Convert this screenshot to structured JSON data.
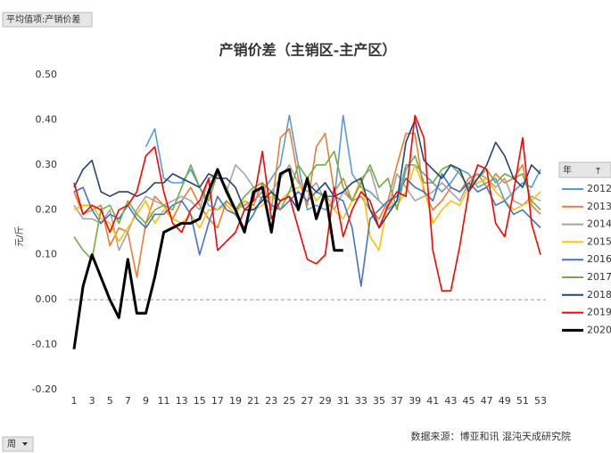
{
  "pivot_fields": {
    "value_field": "平均值项:产销价差",
    "row_field": "周",
    "legend_field": "年"
  },
  "chart_data": {
    "type": "line",
    "title": "产销价差（主销区-主产区）",
    "y_label": "元/斤",
    "source": "数据来源：博亚和讯 混沌天成研究院",
    "x": [
      1,
      2,
      3,
      4,
      5,
      6,
      7,
      8,
      9,
      10,
      11,
      12,
      13,
      14,
      15,
      16,
      17,
      18,
      19,
      20,
      21,
      22,
      23,
      24,
      25,
      26,
      27,
      28,
      29,
      30,
      31,
      32,
      33,
      34,
      35,
      36,
      37,
      38,
      39,
      40,
      41,
      42,
      43,
      44,
      45,
      46,
      47,
      48,
      49,
      50,
      51,
      52,
      53
    ],
    "xlim": [
      1,
      53
    ],
    "xticks": [
      1,
      3,
      5,
      7,
      9,
      11,
      13,
      15,
      17,
      19,
      21,
      23,
      25,
      27,
      29,
      31,
      33,
      35,
      37,
      39,
      41,
      43,
      45,
      47,
      49,
      51,
      53
    ],
    "ylim": [
      -0.2,
      0.5
    ],
    "yticks": [
      {
        "value": 0.5,
        "label": "0.50"
      },
      {
        "value": 0.4,
        "label": "0.40"
      },
      {
        "value": 0.3,
        "label": "0.30"
      },
      {
        "value": 0.2,
        "label": "0.20"
      },
      {
        "value": 0.1,
        "label": "0.10"
      },
      {
        "value": 0,
        "label": "0.00"
      },
      {
        "value": -0.1,
        "label": "-0.10"
      },
      {
        "value": -0.2,
        "label": "-0.20"
      }
    ],
    "grid": false,
    "legend_position": "right",
    "series": [
      {
        "name": "2012",
        "color": "#5b9bd5",
        "values": [
          null,
          null,
          null,
          null,
          null,
          null,
          null,
          null,
          0.34,
          0.38,
          0.27,
          0.26,
          0.26,
          0.29,
          0.25,
          0.21,
          0.2,
          0.22,
          0.2,
          0.21,
          0.22,
          0.24,
          0.27,
          0.3,
          0.41,
          0.3,
          0.2,
          0.21,
          0.2,
          0.22,
          0.41,
          0.28,
          0.25,
          0.24,
          0.22,
          0.2,
          0.22,
          0.3,
          0.3,
          0.28,
          0.26,
          0.24,
          0.26,
          0.29,
          0.28,
          0.25,
          0.26,
          0.27,
          0.22,
          0.24,
          0.26,
          0.25,
          0.29
        ]
      },
      {
        "name": "2013",
        "color": "#ed7d31",
        "values": [
          0.24,
          0.19,
          0.2,
          0.21,
          0.12,
          0.16,
          0.15,
          0.05,
          0.17,
          0.23,
          0.21,
          0.18,
          0.22,
          0.25,
          0.21,
          0.18,
          0.16,
          0.22,
          0.2,
          0.22,
          0.21,
          0.26,
          0.2,
          0.36,
          0.38,
          0.27,
          0.21,
          0.34,
          0.37,
          0.24,
          0.27,
          0.22,
          0.23,
          0.2,
          0.18,
          0.22,
          0.3,
          0.37,
          0.37,
          0.24,
          0.2,
          0.22,
          0.25,
          0.24,
          0.27,
          0.28,
          0.25,
          0.28,
          0.26,
          0.27,
          0.3,
          0.21,
          0.19
        ]
      },
      {
        "name": "2014",
        "color": "#a5a5a5",
        "values": [
          0.21,
          0.18,
          0.18,
          0.17,
          0.2,
          0.11,
          0.15,
          0.2,
          0.23,
          0.22,
          0.21,
          0.22,
          0.23,
          0.22,
          0.2,
          0.27,
          0.28,
          0.24,
          0.3,
          0.28,
          0.25,
          0.22,
          0.24,
          0.27,
          0.3,
          0.26,
          0.24,
          0.26,
          0.22,
          0.2,
          0.24,
          0.22,
          0.27,
          0.29,
          0.22,
          0.2,
          0.28,
          0.25,
          0.22,
          0.23,
          0.24,
          0.26,
          0.24,
          0.22,
          0.26,
          0.28,
          0.27,
          0.25,
          0.27,
          0.22,
          0.21,
          0.23,
          0.22
        ]
      },
      {
        "name": "2015",
        "color": "#ffc000",
        "values": [
          0.2,
          0.21,
          0.21,
          0.18,
          0.17,
          0.13,
          0.16,
          0.19,
          0.22,
          0.17,
          0.2,
          0.18,
          0.17,
          0.19,
          0.16,
          0.2,
          0.2,
          0.21,
          0.19,
          0.22,
          0.2,
          0.21,
          0.23,
          0.22,
          0.24,
          0.25,
          0.26,
          0.22,
          0.24,
          0.2,
          0.18,
          0.22,
          0.27,
          0.14,
          0.11,
          0.22,
          0.21,
          0.24,
          0.3,
          0.25,
          0.17,
          0.2,
          0.22,
          0.21,
          0.25,
          0.26,
          0.27,
          0.24,
          0.22,
          0.2,
          0.21,
          0.22,
          0.24
        ]
      },
      {
        "name": "2016",
        "color": "#4472c4",
        "values": [
          0.24,
          0.25,
          0.2,
          0.17,
          0.19,
          0.18,
          0.21,
          0.18,
          0.16,
          0.19,
          0.19,
          0.21,
          0.22,
          0.19,
          0.1,
          0.17,
          0.23,
          0.2,
          0.19,
          0.16,
          0.19,
          0.23,
          0.21,
          0.2,
          0.22,
          0.24,
          0.22,
          0.24,
          0.23,
          0.23,
          0.22,
          0.16,
          0.03,
          0.18,
          0.2,
          0.22,
          0.23,
          0.27,
          0.25,
          0.24,
          0.22,
          0.28,
          0.25,
          0.24,
          0.26,
          0.24,
          0.25,
          0.21,
          0.22,
          0.19,
          0.2,
          0.18,
          0.16
        ]
      },
      {
        "name": "2017",
        "color": "#70ad47",
        "values": [
          0.14,
          0.11,
          0.09,
          0.2,
          0.21,
          0.17,
          0.22,
          0.19,
          0.17,
          0.2,
          0.21,
          0.2,
          0.25,
          0.3,
          0.25,
          0.22,
          0.28,
          0.25,
          0.2,
          0.23,
          0.25,
          0.26,
          0.24,
          0.2,
          0.24,
          0.3,
          0.27,
          0.3,
          0.3,
          0.33,
          0.25,
          0.22,
          0.26,
          0.3,
          0.25,
          0.27,
          0.2,
          0.29,
          0.32,
          0.26,
          0.26,
          0.29,
          0.3,
          0.28,
          0.25,
          0.27,
          0.29,
          0.26,
          0.28,
          0.27,
          0.28,
          0.22,
          0.2
        ]
      },
      {
        "name": "2018",
        "color": "#264478",
        "values": [
          0.25,
          0.29,
          0.31,
          0.24,
          0.23,
          0.24,
          0.24,
          0.23,
          0.24,
          0.26,
          0.26,
          0.28,
          0.27,
          0.26,
          0.25,
          0.28,
          0.27,
          0.27,
          0.25,
          0.2,
          0.2,
          0.22,
          0.24,
          0.22,
          0.23,
          0.2,
          0.26,
          0.24,
          0.26,
          0.23,
          0.24,
          0.26,
          0.27,
          0.2,
          0.16,
          0.19,
          0.22,
          0.35,
          0.4,
          0.31,
          0.29,
          0.27,
          0.3,
          0.29,
          0.24,
          0.27,
          0.3,
          0.35,
          0.32,
          0.27,
          0.25,
          0.3,
          0.28
        ]
      },
      {
        "name": "2019",
        "color": "#ff0000",
        "values": [
          0.26,
          0.19,
          0.21,
          0.2,
          0.15,
          0.2,
          0.21,
          0.24,
          0.32,
          0.34,
          0.24,
          0.17,
          0.15,
          0.2,
          0.22,
          0.27,
          0.11,
          0.13,
          0.15,
          0.2,
          0.22,
          0.33,
          0.18,
          0.22,
          0.23,
          0.16,
          0.09,
          0.08,
          0.1,
          0.25,
          0.14,
          0.2,
          0.24,
          0.22,
          0.16,
          0.21,
          0.24,
          0.23,
          0.41,
          0.36,
          0.11,
          0.02,
          0.02,
          0.12,
          0.24,
          0.3,
          0.29,
          0.17,
          0.14,
          0.24,
          0.36,
          0.17,
          0.1
        ]
      },
      {
        "name": "2020",
        "color": "#000000",
        "values": [
          -0.11,
          0.03,
          0.1,
          0.05,
          0.0,
          -0.04,
          0.09,
          -0.03,
          -0.03,
          0.05,
          0.15,
          0.16,
          0.17,
          0.17,
          0.18,
          0.24,
          0.29,
          0.24,
          0.2,
          0.15,
          0.24,
          0.25,
          0.15,
          0.28,
          0.29,
          0.2,
          0.27,
          0.18,
          0.24,
          0.11,
          0.11,
          null,
          null,
          null,
          null,
          null,
          null,
          null,
          null,
          null,
          null,
          null,
          null,
          null,
          null,
          null,
          null,
          null,
          null,
          null,
          null,
          null,
          null
        ]
      }
    ]
  }
}
